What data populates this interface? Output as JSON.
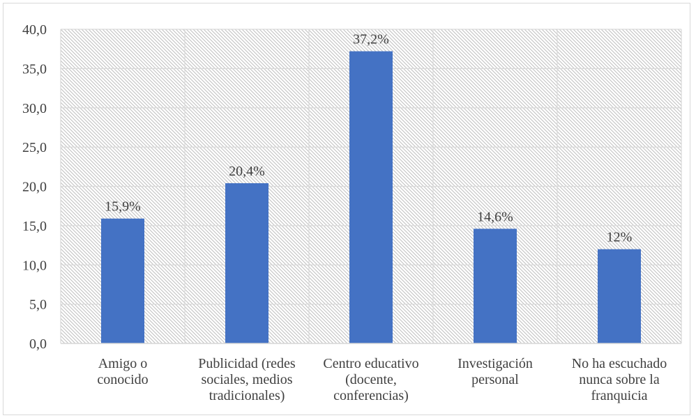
{
  "chart_data": {
    "type": "bar",
    "title": "",
    "xlabel": "",
    "ylabel": "",
    "categories": [
      [
        "Amigo o",
        "conocido"
      ],
      [
        "Publicidad (redes",
        "sociales, medios",
        "tradicionales)"
      ],
      [
        "Centro educativo",
        "(docente,",
        "conferencias)"
      ],
      [
        "Investigación",
        "personal"
      ],
      [
        "No ha escuchado",
        "nunca sobre la",
        "franquicia"
      ]
    ],
    "values": [
      15.9,
      20.4,
      37.2,
      14.6,
      12.0
    ],
    "data_labels": [
      "15,9%",
      "20,4%",
      "37,2%",
      "14,6%",
      "12%"
    ],
    "ylim": [
      0,
      40
    ],
    "yticks": [
      0,
      5,
      10,
      15,
      20,
      25,
      30,
      35,
      40
    ],
    "ytick_labels": [
      "0,0",
      "5,0",
      "10,0",
      "15,0",
      "20,0",
      "25,0",
      "30,0",
      "35,0",
      "40,0"
    ],
    "grid": true,
    "legend": "none",
    "colors": {
      "bar": "#4472c4",
      "gridline": "#d9d9d9",
      "hatch": "#bfbfbf",
      "text": "#404040"
    }
  }
}
